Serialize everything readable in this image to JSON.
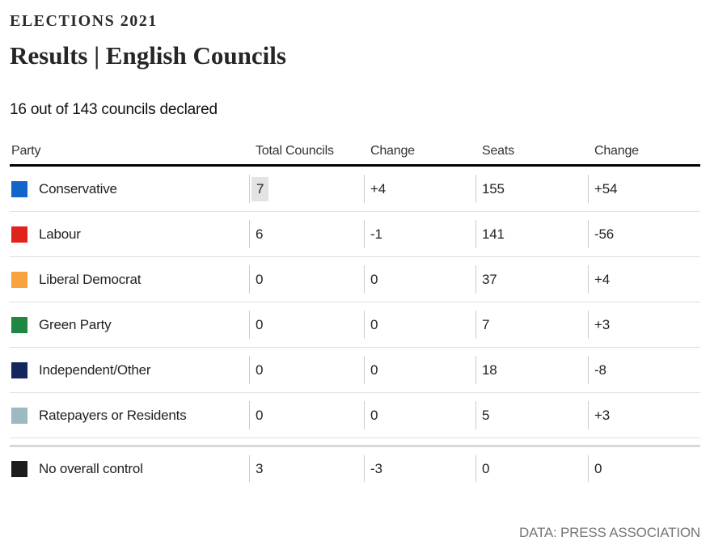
{
  "page": {
    "kicker": "ELECTIONS 2021",
    "title": "Results | English Councils",
    "status": "16 out of 143 councils declared",
    "source": "DATA: PRESS ASSOCIATION"
  },
  "chart_data": {
    "type": "table",
    "title": "Results | English Councils",
    "subtitle": "16 out of 143 councils declared",
    "columns": [
      "Party",
      "Total Councils",
      "Change",
      "Seats",
      "Change"
    ],
    "rows": [
      {
        "party": "Conservative",
        "swatch_color": "#1166cb",
        "total_councils": "7",
        "councils_change": "+4",
        "seats": "155",
        "seats_change": "+54",
        "total_highlighted": true,
        "summary_row": false
      },
      {
        "party": "Labour",
        "swatch_color": "#e2231c",
        "total_councils": "6",
        "councils_change": "-1",
        "seats": "141",
        "seats_change": "-56",
        "total_highlighted": false,
        "summary_row": false
      },
      {
        "party": "Liberal Democrat",
        "swatch_color": "#faa23f",
        "total_councils": "0",
        "councils_change": "0",
        "seats": "37",
        "seats_change": "+4",
        "total_highlighted": false,
        "summary_row": false
      },
      {
        "party": "Green Party",
        "swatch_color": "#1e8741",
        "total_councils": "0",
        "councils_change": "0",
        "seats": "7",
        "seats_change": "+3",
        "total_highlighted": false,
        "summary_row": false
      },
      {
        "party": "Independent/Other",
        "swatch_color": "#14265e",
        "total_councils": "0",
        "councils_change": "0",
        "seats": "18",
        "seats_change": "-8",
        "total_highlighted": false,
        "summary_row": false
      },
      {
        "party": "Ratepayers or Residents",
        "swatch_color": "#9db9c2",
        "total_councils": "0",
        "councils_change": "0",
        "seats": "5",
        "seats_change": "+3",
        "total_highlighted": false,
        "summary_row": false
      },
      {
        "party": "No overall control",
        "swatch_color": "#1c1c1c",
        "total_councils": "3",
        "councils_change": "-3",
        "seats": "0",
        "seats_change": "0",
        "total_highlighted": false,
        "summary_row": true
      }
    ],
    "source": "DATA: PRESS ASSOCIATION",
    "accent_colors": {
      "header_rule": "#000000",
      "row_divider": "#e0e0e0",
      "summary_divider": "#d8d8d8",
      "cell_divider": "#cccccc",
      "highlight_background": "#e3e3e3"
    }
  }
}
